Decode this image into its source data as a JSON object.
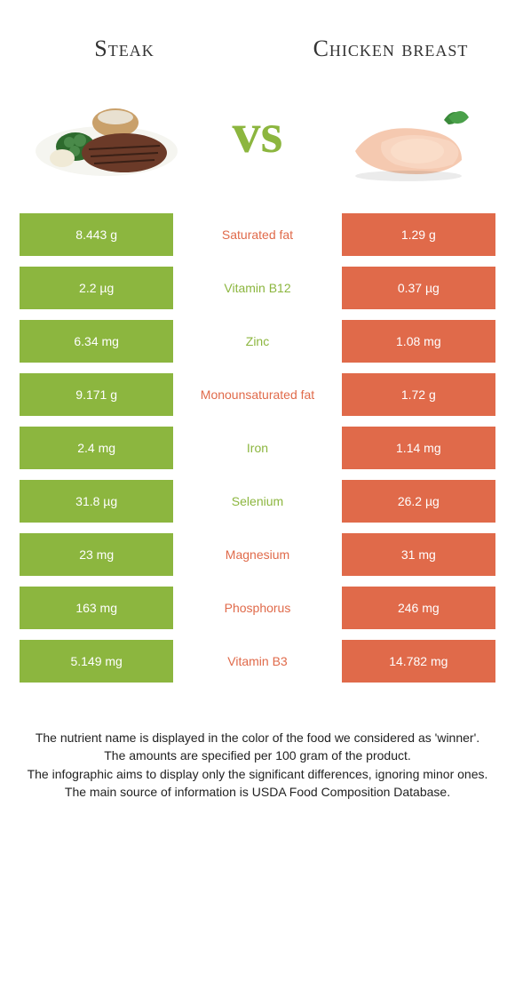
{
  "colors": {
    "left": "#8cb63f",
    "right": "#e06a4a",
    "text": "#333333",
    "background": "#ffffff"
  },
  "header": {
    "left_title": "Steak",
    "right_title": "Chicken breast",
    "vs": "vs"
  },
  "rows": [
    {
      "left": "8.443 g",
      "label": "Saturated fat",
      "right": "1.29 g",
      "winner": "right"
    },
    {
      "left": "2.2 µg",
      "label": "Vitamin B12",
      "right": "0.37 µg",
      "winner": "left"
    },
    {
      "left": "6.34 mg",
      "label": "Zinc",
      "right": "1.08 mg",
      "winner": "left"
    },
    {
      "left": "9.171 g",
      "label": "Monounsaturated fat",
      "right": "1.72 g",
      "winner": "right"
    },
    {
      "left": "2.4 mg",
      "label": "Iron",
      "right": "1.14 mg",
      "winner": "left"
    },
    {
      "left": "31.8 µg",
      "label": "Selenium",
      "right": "26.2 µg",
      "winner": "left"
    },
    {
      "left": "23 mg",
      "label": "Magnesium",
      "right": "31 mg",
      "winner": "right"
    },
    {
      "left": "163 mg",
      "label": "Phosphorus",
      "right": "246 mg",
      "winner": "right"
    },
    {
      "left": "5.149 mg",
      "label": "Vitamin B3",
      "right": "14.782 mg",
      "winner": "right"
    }
  ],
  "footnote": {
    "l1": "The nutrient name is displayed in the color of the food we considered as 'winner'.",
    "l2": "The amounts are specified per 100 gram of the product.",
    "l3": "The infographic aims to display only the significant differences, ignoring minor ones.",
    "l4": "The main source of information is USDA Food Composition Database."
  }
}
